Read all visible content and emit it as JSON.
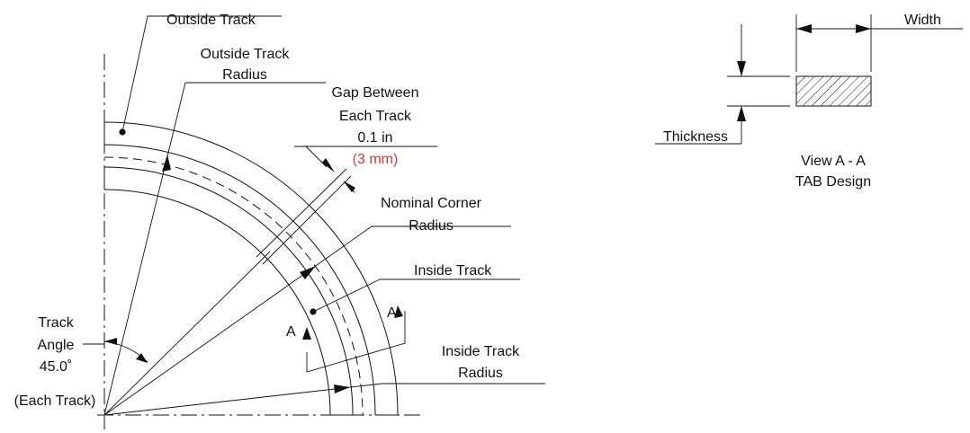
{
  "labels": {
    "outside_track": "Outside Track",
    "outside_track_radius_1": "Outside Track",
    "outside_track_radius_2": "Radius",
    "gap_1": "Gap Between",
    "gap_2": "Each Track",
    "gap_3": "0.1 in",
    "gap_4": "(3 mm)",
    "nominal_1": "Nominal Corner",
    "nominal_2": "Radius",
    "inside_track": "Inside Track",
    "inside_radius_1": "Inside Track",
    "inside_radius_2": "Radius",
    "angle_1": "Track",
    "angle_2": "Angle",
    "angle_3": "45.0˚",
    "angle_4": "(Each Track)",
    "section_a_left": "A",
    "section_a_right": "A",
    "width": "Width",
    "thickness": "Thickness",
    "view_1": "View A - A",
    "view_2": "TAB Design"
  },
  "colors": {
    "metric": "#d43838",
    "line": "#111111"
  }
}
